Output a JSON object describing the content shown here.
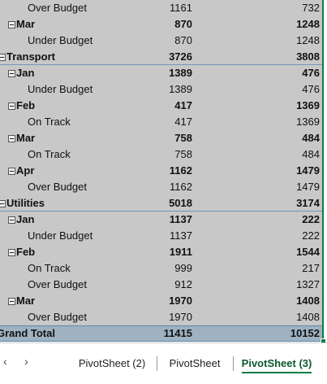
{
  "table": {
    "rows": [
      {
        "level": 2,
        "label": "Over Budget",
        "cells": [
          1161,
          732
        ]
      },
      {
        "level": 1,
        "label": "Mar",
        "cells": [
          870,
          1248
        ]
      },
      {
        "level": 2,
        "label": "Under Budget",
        "cells": [
          870,
          1248
        ]
      },
      {
        "level": 0,
        "label": "Transport",
        "cells": [
          3726,
          3808
        ]
      },
      {
        "level": 1,
        "label": "Jan",
        "cells": [
          1389,
          476
        ]
      },
      {
        "level": 2,
        "label": "Under Budget",
        "cells": [
          1389,
          476
        ]
      },
      {
        "level": 1,
        "label": "Feb",
        "cells": [
          417,
          1369
        ]
      },
      {
        "level": 2,
        "label": "On Track",
        "cells": [
          417,
          1369
        ]
      },
      {
        "level": 1,
        "label": "Mar",
        "cells": [
          758,
          484
        ]
      },
      {
        "level": 2,
        "label": "On Track",
        "cells": [
          758,
          484
        ]
      },
      {
        "level": 1,
        "label": "Apr",
        "cells": [
          1162,
          1479
        ]
      },
      {
        "level": 2,
        "label": "Over Budget",
        "cells": [
          1162,
          1479
        ]
      },
      {
        "level": 0,
        "label": "Utilities",
        "cells": [
          5018,
          3174
        ]
      },
      {
        "level": 1,
        "label": "Jan",
        "cells": [
          1137,
          222
        ]
      },
      {
        "level": 2,
        "label": "Under Budget",
        "cells": [
          1137,
          222
        ]
      },
      {
        "level": 1,
        "label": "Feb",
        "cells": [
          1911,
          1544
        ]
      },
      {
        "level": 2,
        "label": "On Track",
        "cells": [
          999,
          217
        ]
      },
      {
        "level": 2,
        "label": "Over Budget",
        "cells": [
          912,
          1327
        ]
      },
      {
        "level": 1,
        "label": "Mar",
        "cells": [
          1970,
          1408
        ]
      },
      {
        "level": 2,
        "label": "Over Budget",
        "cells": [
          1970,
          1408
        ]
      }
    ],
    "grand_total": {
      "label": "Grand Total",
      "cells": [
        11415,
        10152
      ]
    }
  },
  "tabs": {
    "items": [
      "PivotSheet (2)",
      "PivotSheet",
      "PivotSheet (3)"
    ],
    "active": 2
  }
}
